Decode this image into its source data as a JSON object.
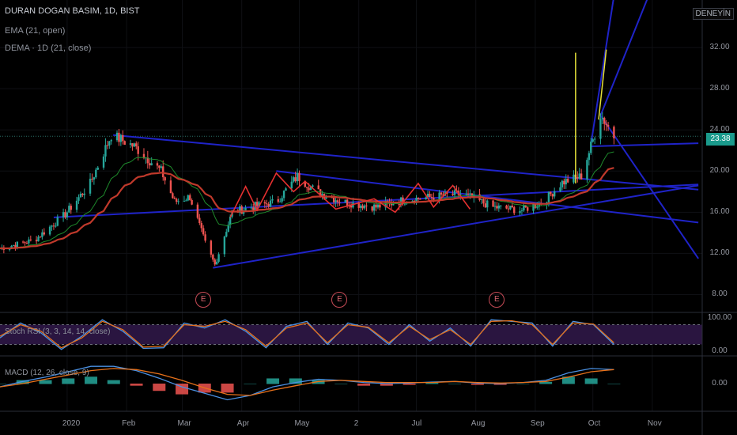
{
  "header": {
    "title": "DURAN DOGAN BASIM, 1D, BIST",
    "indicator_1": "EMA (21, open)",
    "indicator_2": "DEMA · 1D (21, close)",
    "badge": "DENEYİN"
  },
  "price": {
    "last_label": "23.38",
    "last_value": 23.38
  },
  "colors": {
    "up": "#26a69a",
    "down": "#ef5350",
    "trend": "#1f23c8",
    "ema": "#1e8a2c",
    "dema": "#c0392b",
    "zigzag": "#e53030",
    "yellow": "#e8e23a",
    "rsi_k": "#4a90e2",
    "rsi_d": "#e8711a"
  },
  "earnings_marker": "E",
  "rsi_label": "Stoch RSI (3, 3, 14, 14, close)",
  "macd_label": "MACD (12, 26, close, 9)",
  "chart_data": [
    {
      "type": "candlestick",
      "title": "DURAN DOGAN BASIM, 1D, BIST",
      "x_ticks": [
        "2020",
        "Feb",
        "Mar",
        "Apr",
        "May",
        "2",
        "Jul",
        "Aug",
        "Sep",
        "Oct",
        "Nov"
      ],
      "y_ticks": [
        "32.00",
        "28.00",
        "24.00",
        "20.00",
        "16.00",
        "12.00",
        "8.00"
      ],
      "ylim": [
        6.5,
        36
      ],
      "close_path": [
        {
          "date": "2019-11-27",
          "close": 12.5
        },
        {
          "date": "2019-12-15",
          "close": 13.3
        },
        {
          "date": "2019-12-31",
          "close": 15.8
        },
        {
          "date": "2020-01-13",
          "close": 18.8
        },
        {
          "date": "2020-01-24",
          "close": 23.5
        },
        {
          "date": "2020-02-05",
          "close": 22.4
        },
        {
          "date": "2020-02-19",
          "close": 20.0
        },
        {
          "date": "2020-02-26",
          "close": 17.0
        },
        {
          "date": "2020-03-05",
          "close": 17.5
        },
        {
          "date": "2020-03-13",
          "close": 13.0
        },
        {
          "date": "2020-03-18",
          "close": 10.9
        },
        {
          "date": "2020-03-27",
          "close": 16.0
        },
        {
          "date": "2020-04-08",
          "close": 16.6
        },
        {
          "date": "2020-04-19",
          "close": 17.0
        },
        {
          "date": "2020-04-30",
          "close": 19.5
        },
        {
          "date": "2020-05-10",
          "close": 18.0
        },
        {
          "date": "2020-05-24",
          "close": 17.0
        },
        {
          "date": "2020-06-10",
          "close": 16.5
        },
        {
          "date": "2020-06-25",
          "close": 17.2
        },
        {
          "date": "2020-07-10",
          "close": 17.5
        },
        {
          "date": "2020-07-25",
          "close": 17.8
        },
        {
          "date": "2020-08-10",
          "close": 16.5
        },
        {
          "date": "2020-08-25",
          "close": 16.2
        },
        {
          "date": "2020-09-05",
          "close": 17.0
        },
        {
          "date": "2020-09-15",
          "close": 18.9
        },
        {
          "date": "2020-09-25",
          "close": 19.5
        },
        {
          "date": "2020-10-01",
          "close": 23.0
        },
        {
          "date": "2020-10-05",
          "close": 25.5
        },
        {
          "date": "2020-10-12",
          "close": 23.38
        }
      ],
      "trendlines": [
        {
          "from": [
            "2020-01-25",
            23.5
          ],
          "to": [
            "2020-11-25",
            18.2
          ]
        },
        {
          "from": [
            "2019-12-25",
            15.5
          ],
          "to": [
            "2020-11-25",
            18.7
          ]
        },
        {
          "from": [
            "2020-03-17",
            10.6
          ],
          "to": [
            "2020-11-25",
            18.6
          ]
        },
        {
          "from": [
            "2020-04-19",
            20.0
          ],
          "to": [
            "2020-11-25",
            15.0
          ]
        },
        {
          "from": [
            "2020-09-30",
            22.4
          ],
          "to": [
            "2020-11-25",
            22.7
          ]
        },
        {
          "from": [
            "2020-10-05",
            25.4
          ],
          "to": [
            "2020-11-25",
            11.5
          ]
        }
      ],
      "zigzag": [
        {
          "date": "2020-03-26",
          "price": 15.5
        },
        {
          "date": "2020-04-03",
          "price": 18.5
        },
        {
          "date": "2020-04-09",
          "price": 16.2
        },
        {
          "date": "2020-04-19",
          "price": 19.8
        },
        {
          "date": "2020-04-28",
          "price": 18.0
        },
        {
          "date": "2020-05-04",
          "price": 19.0
        },
        {
          "date": "2020-05-20",
          "price": 16.3
        },
        {
          "date": "2020-06-09",
          "price": 17.3
        },
        {
          "date": "2020-06-20",
          "price": 16.0
        },
        {
          "date": "2020-07-02",
          "price": 18.8
        },
        {
          "date": "2020-07-10",
          "price": 16.5
        },
        {
          "date": "2020-07-20",
          "price": 18.6
        },
        {
          "date": "2020-07-29",
          "price": 16.3
        }
      ],
      "yellow_lines": [
        {
          "date": "2020-09-22",
          "top": 31.5
        },
        {
          "date": "2020-10-08",
          "top": 31.8
        }
      ],
      "earnings_dates": [
        "2020-03-12",
        "2020-05-22",
        "2020-08-12"
      ]
    },
    {
      "type": "line",
      "title": "Stoch RSI (3, 3, 14, 14, close)",
      "y_ticks": [
        "100.00",
        "0.00"
      ],
      "ylim": [
        -10,
        110
      ],
      "band": [
        20,
        80
      ],
      "series": [
        {
          "name": "K",
          "values": [
            40,
            85,
            55,
            5,
            45,
            95,
            60,
            8,
            10,
            85,
            70,
            95,
            60,
            10,
            75,
            90,
            20,
            85,
            70,
            20,
            80,
            30,
            70,
            15,
            95,
            90,
            85,
            15,
            90,
            80,
            20
          ]
        },
        {
          "name": "D",
          "values": [
            45,
            80,
            60,
            10,
            40,
            90,
            65,
            12,
            15,
            80,
            75,
            90,
            65,
            15,
            70,
            85,
            25,
            80,
            72,
            25,
            75,
            35,
            65,
            20,
            90,
            92,
            80,
            20,
            85,
            82,
            25
          ]
        }
      ]
    },
    {
      "type": "bar",
      "title": "MACD (12, 26, close, 9)",
      "y_ticks": [
        "0.00"
      ],
      "ylim": [
        -2.2,
        2.2
      ],
      "series": [
        {
          "name": "MACD",
          "values": [
            -0.3,
            0.2,
            0.6,
            1.1,
            1.6,
            1.6,
            1.2,
            0.5,
            -0.3,
            -0.9,
            -1.5,
            -1.1,
            -0.3,
            0.1,
            0.4,
            0.3,
            0.1,
            0.0,
            0.05,
            0.15,
            0.2,
            0.05,
            0.0,
            0.1,
            0.3,
            1.0,
            1.4,
            1.3
          ]
        },
        {
          "name": "Signal",
          "values": [
            -0.3,
            0.0,
            0.4,
            0.8,
            1.2,
            1.4,
            1.3,
            0.9,
            0.3,
            -0.4,
            -1.0,
            -1.1,
            -0.6,
            -0.2,
            0.2,
            0.3,
            0.2,
            0.1,
            0.1,
            0.1,
            0.2,
            0.1,
            0.05,
            0.1,
            0.2,
            0.6,
            1.1,
            1.3
          ]
        }
      ]
    }
  ]
}
